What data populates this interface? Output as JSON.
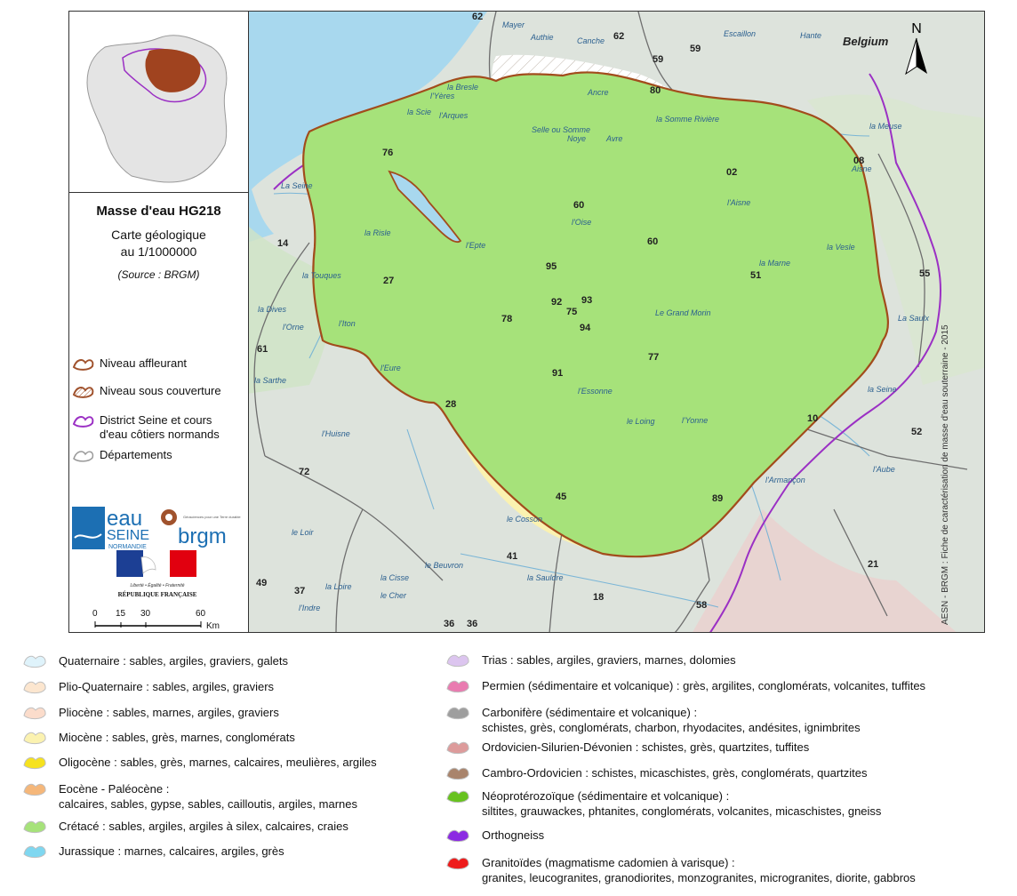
{
  "panel": {
    "title": "Masse d'eau HG218",
    "subtitle_1": "Carte géologique",
    "subtitle_2": "au 1/1000000",
    "source": "(Source : BRGM)",
    "legend": [
      {
        "label": "Niveau affleurant",
        "color": "#a0522d"
      },
      {
        "label": "Niveau sous couverture",
        "color": "#a0522d"
      },
      {
        "label": "District Seine et cours",
        "color": "#9b30c4"
      },
      {
        "label": "d'eau côtiers normands",
        "color": "#9b30c4"
      },
      {
        "label": "Départements",
        "color": "#777777"
      }
    ],
    "logos": {
      "eau": "eau",
      "seine": "SEINE",
      "normandie": "NORMANDIE",
      "brgm": "brgm",
      "brgm_tagline": "Géosciences pour une Terre durable",
      "rf_motto": "Liberté • Égalité • Fraternité",
      "rf_name": "RÉPUBLIQUE FRANÇAISE"
    },
    "scale": {
      "ticks": [
        "0",
        "15",
        "30",
        "60"
      ],
      "unit": "Km"
    }
  },
  "map": {
    "country_label": "Belgium",
    "north_label": "N",
    "credit": "AESN - BRGM : Fiche de caractérisation de masse d'eau souterraine - 2015",
    "departments": [
      "62",
      "62",
      "59",
      "59",
      "80",
      "76",
      "02",
      "08",
      "60",
      "60",
      "14",
      "27",
      "95",
      "51",
      "55",
      "92",
      "93",
      "75",
      "78",
      "94",
      "61",
      "77",
      "91",
      "28",
      "10",
      "52",
      "72",
      "89",
      "45",
      "41",
      "21",
      "49",
      "37",
      "18",
      "58",
      "36",
      "36"
    ],
    "rivers": [
      "Mayer",
      "Authie",
      "Canche",
      "Escaillon",
      "Hante",
      "la Bresle",
      "l'Yères",
      "l'Arques",
      "la Scie",
      "Ancre",
      "Selle ou Somme",
      "Noye",
      "Avre",
      "la Somme Rivière",
      "la Meuse",
      "La Seine",
      "l'Epte",
      "l'Oise",
      "l'Aisne",
      "la Risle",
      "la Touques",
      "la Dives",
      "l'Orne",
      "l'Iton",
      "l'Eure",
      "la Marne",
      "la Vesle",
      "La Saulx",
      "Le Grand Morin",
      "l'Essonne",
      "le Loing",
      "l'Yonne",
      "l'Armançon",
      "l'Aube",
      "la Seine",
      "la Sarthe",
      "l'Huisne",
      "le Loir",
      "la Loire",
      "la Cisse",
      "le Beuvron",
      "le Cosson",
      "le Cher",
      "l'Indre",
      "la Sauldre",
      "Aisne"
    ],
    "colors": {
      "sea": "#a8d8ee",
      "cretace": "#a6e27a",
      "eocene": "#f5b77a",
      "oligocene": "#f6e21e",
      "outside": "#e9ece8",
      "mask": "#c8d8c2",
      "boundary": "#a24c1c",
      "district": "#9b30c4"
    }
  },
  "legend_left": [
    {
      "lines": [
        "Quaternaire : sables, argiles, graviers, galets"
      ],
      "color": "#dff3fb"
    },
    {
      "lines": [
        "Plio-Quaternaire : sables, argiles, graviers"
      ],
      "color": "#fce6cf"
    },
    {
      "lines": [
        "Pliocène : sables, marnes, argiles, graviers"
      ],
      "color": "#fbdccb"
    },
    {
      "lines": [
        "Miocène : sables, grès, marnes, conglomérats"
      ],
      "color": "#fbf2b0"
    },
    {
      "lines": [
        "Oligocène : sables, grès, marnes, calcaires, meulières, argiles"
      ],
      "color": "#f6e21e"
    },
    {
      "lines": [
        "Eocène - Paléocène :",
        "calcaires, sables, gypse, sables, cailloutis, argiles, marnes"
      ],
      "color": "#f5b77a"
    },
    {
      "lines": [
        "Crétacé : sables, argiles, argiles à silex, calcaires, craies"
      ],
      "color": "#a6e27a"
    },
    {
      "lines": [
        "Jurassique : marnes, calcaires, argiles, grès"
      ],
      "color": "#7fd7f0"
    }
  ],
  "legend_right": [
    {
      "lines": [
        "Trias : sables, argiles, graviers, marnes, dolomies"
      ],
      "color": "#dcc5ef"
    },
    {
      "lines": [
        "Permien (sédimentaire et volcanique) : grès, argilites, conglomérats, volcanites, tuffites"
      ],
      "color": "#e97bb0"
    },
    {
      "lines": [
        "Carbonifère (sédimentaire et volcanique) :",
        "schistes, grès, conglomérats, charbon, rhyodacites, andésites, ignimbrites"
      ],
      "color": "#9e9e9e"
    },
    {
      "lines": [
        "Ordovicien-Silurien-Dévonien : schistes, grès, quartzites, tuffites"
      ],
      "color": "#dd9b9b"
    },
    {
      "lines": [
        "Cambro-Ordovicien : schistes, micaschistes, grès, conglomérats, quartzites"
      ],
      "color": "#a9846c"
    },
    {
      "lines": [
        "Néoprotérozoïque (sédimentaire et volcanique) :",
        "siltites, grauwackes, phtanites, conglomérats, volcanites, micaschistes, gneiss"
      ],
      "color": "#67c21f"
    },
    {
      "lines": [
        "Orthogneiss"
      ],
      "color": "#8b2be2"
    },
    {
      "lines": [
        "Granitoïdes (magmatisme cadomien à varisque) :",
        "granites, leucogranites, granodiorites, monzogranites, microgranites, diorite, gabbros"
      ],
      "color": "#ee1b1b"
    }
  ]
}
